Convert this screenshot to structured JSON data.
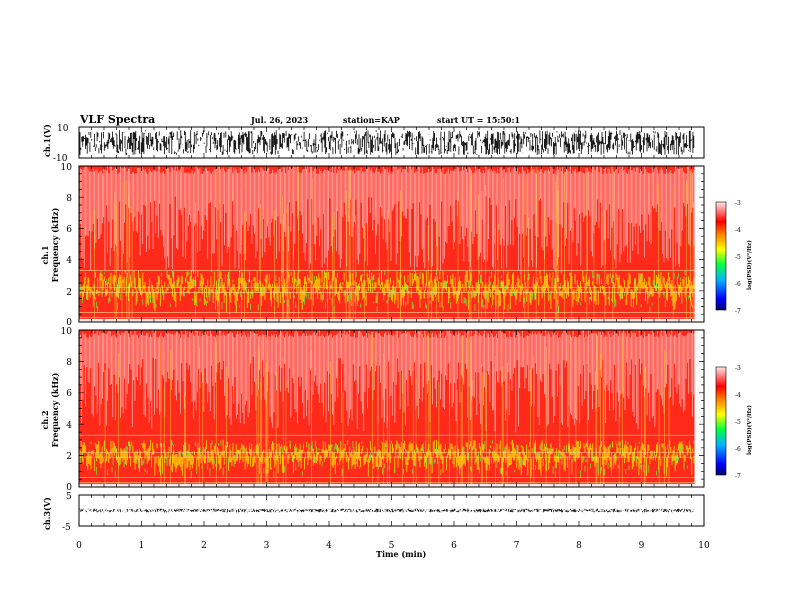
{
  "header": {
    "title": "VLF Spectra",
    "date": "Jul. 26, 2023",
    "station": "station=KAP",
    "start": "start UT =  15:50:1"
  },
  "colors": {
    "spectrogram_background": "#ff2a1a",
    "trace": "#000000",
    "colorbar": [
      "#00008b",
      "#0000ff",
      "#00c8ff",
      "#00ff00",
      "#ffff00",
      "#ff8000",
      "#ff0000",
      "#ffe8e8"
    ]
  },
  "chart_data": [
    {
      "type": "line",
      "name": "ch1-waveform",
      "ylabel": "ch.1(V)",
      "xlim": [
        0,
        10
      ],
      "ylim": [
        -10,
        10
      ],
      "yticks": [
        "10",
        "-10"
      ],
      "data_extent_min": 9.85,
      "amplitude_range": [
        -8,
        8
      ]
    },
    {
      "type": "heatmap",
      "name": "ch1-spectrogram",
      "ylabel": "ch.1\nFrequency (kHz)",
      "xlim": [
        0,
        10
      ],
      "ylim": [
        0,
        10
      ],
      "yticks": [
        "0",
        "2",
        "4",
        "6",
        "8",
        "10"
      ],
      "data_extent_min": 9.85,
      "noise_floor_khz": 4,
      "intense_band_khz": [
        1,
        3.3
      ],
      "colorbar": {
        "label": "log(PSD)(V²/Hz)",
        "ticks": [
          "-3",
          "-4",
          "-5",
          "-6",
          "-7"
        ],
        "range": [
          -7,
          -3
        ]
      }
    },
    {
      "type": "heatmap",
      "name": "ch2-spectrogram",
      "ylabel": "ch.2\nFrequency (kHz)",
      "xlim": [
        0,
        10
      ],
      "ylim": [
        0,
        10
      ],
      "yticks": [
        "0",
        "2",
        "4",
        "6",
        "8",
        "10"
      ],
      "data_extent_min": 9.85,
      "noise_floor_khz": 4.5,
      "intense_band_khz": [
        1,
        3
      ],
      "colorbar": {
        "label": "log(PSD)(V²/Hz)",
        "ticks": [
          "-3",
          "-4",
          "-5",
          "-6",
          "-7"
        ],
        "range": [
          -7,
          -3
        ]
      }
    },
    {
      "type": "line",
      "name": "ch3-waveform",
      "ylabel": "ch.3(V)",
      "xlabel": "Time (min)",
      "xlim": [
        0,
        10
      ],
      "xticks": [
        "0",
        "1",
        "2",
        "3",
        "4",
        "5",
        "6",
        "7",
        "8",
        "9",
        "10"
      ],
      "ylim": [
        -5,
        5
      ],
      "yticks": [
        "5",
        "-5"
      ],
      "data_extent_min": 9.85,
      "amplitude_range": [
        -0.6,
        0.6
      ]
    }
  ]
}
